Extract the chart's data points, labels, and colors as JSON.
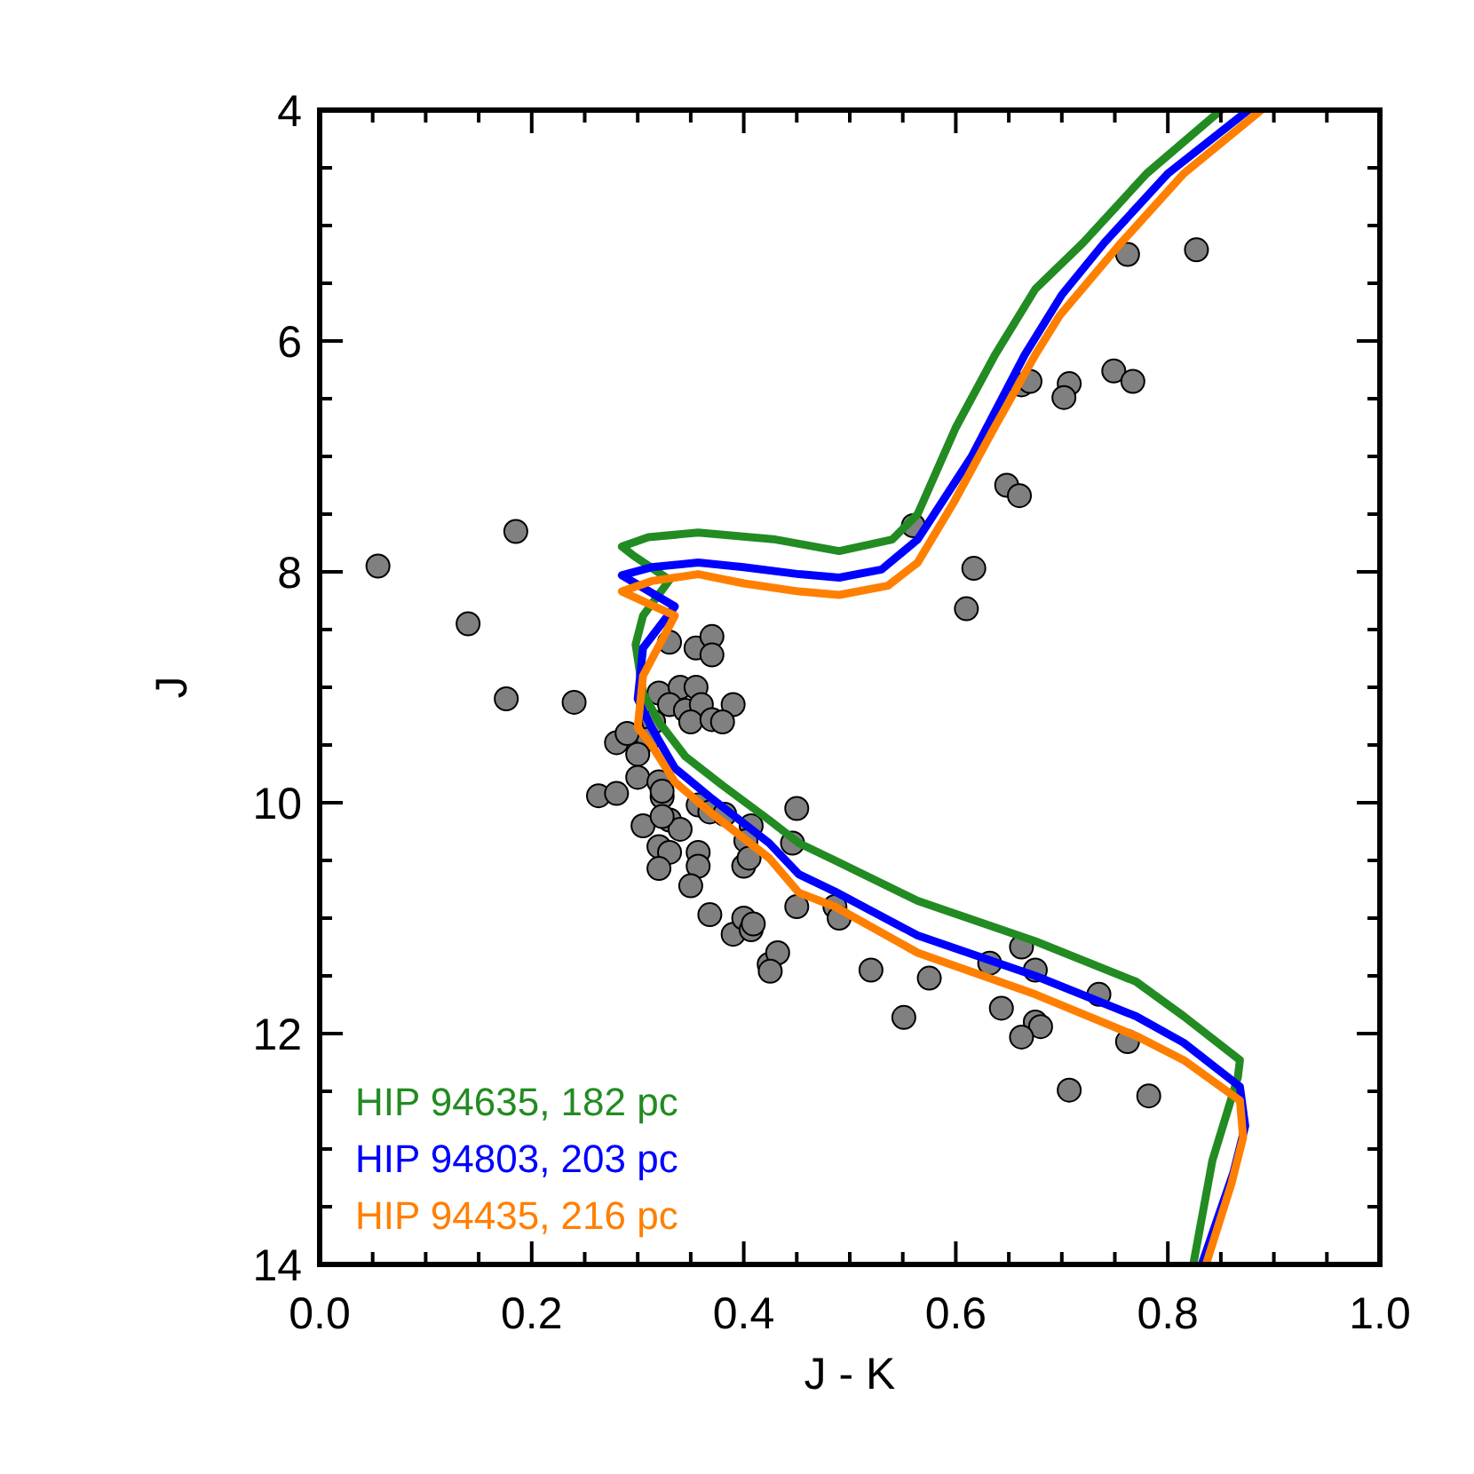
{
  "chart_data": {
    "type": "scatter",
    "xlabel": "J - K",
    "ylabel": "J",
    "xlim": [
      0,
      1
    ],
    "ylim": [
      14,
      4
    ],
    "xticks": [
      {
        "value": 0,
        "label": "0.0"
      },
      {
        "value": 0.05,
        "label": null
      },
      {
        "value": 0.1,
        "label": null
      },
      {
        "value": 0.15,
        "label": null
      },
      {
        "value": 0.2,
        "label": "0.2"
      },
      {
        "value": 0.25,
        "label": null
      },
      {
        "value": 0.3,
        "label": null
      },
      {
        "value": 0.35,
        "label": null
      },
      {
        "value": 0.4,
        "label": "0.4"
      },
      {
        "value": 0.45,
        "label": null
      },
      {
        "value": 0.5,
        "label": null
      },
      {
        "value": 0.55,
        "label": null
      },
      {
        "value": 0.6,
        "label": "0.6"
      },
      {
        "value": 0.65,
        "label": null
      },
      {
        "value": 0.7,
        "label": null
      },
      {
        "value": 0.75,
        "label": null
      },
      {
        "value": 0.8,
        "label": "0.8"
      },
      {
        "value": 0.85,
        "label": null
      },
      {
        "value": 0.9,
        "label": null
      },
      {
        "value": 0.95,
        "label": null
      },
      {
        "value": 1,
        "label": "1.0"
      }
    ],
    "yticks": [
      4,
      {
        "value": 4.5,
        "label": null
      },
      {
        "value": 5,
        "label": null
      },
      {
        "value": 5.5,
        "label": null
      },
      6,
      {
        "value": 6.5,
        "label": null
      },
      {
        "value": 7,
        "label": null
      },
      {
        "value": 7.5,
        "label": null
      },
      8,
      {
        "value": 8.5,
        "label": null
      },
      {
        "value": 9,
        "label": null
      },
      {
        "value": 9.5,
        "label": null
      },
      10,
      {
        "value": 10.5,
        "label": null
      },
      {
        "value": 11,
        "label": null
      },
      {
        "value": 11.5,
        "label": null
      },
      12,
      {
        "value": 12.5,
        "label": null
      },
      {
        "value": 13,
        "label": null
      },
      {
        "value": 13.5,
        "label": null
      },
      14
    ],
    "grid": false,
    "legend": "bottom left",
    "series": [
      {
        "marker": "circle",
        "color": "#808080",
        "x": [
          0.055,
          0.185,
          0.14,
          0.176,
          0.24,
          0.33,
          0.355,
          0.37,
          0.37,
          0.32,
          0.34,
          0.355,
          0.33,
          0.345,
          0.36,
          0.35,
          0.37,
          0.315,
          0.31,
          0.39,
          0.38,
          0.28,
          0.29,
          0.3,
          0.3,
          0.263,
          0.28,
          0.32,
          0.323,
          0.305,
          0.33,
          0.45,
          0.323,
          0.357,
          0.368,
          0.382,
          0.407,
          0.32,
          0.33,
          0.34,
          0.323,
          0.357,
          0.357,
          0.32,
          0.35,
          0.4,
          0.402,
          0.446,
          0.45,
          0.368,
          0.39,
          0.4,
          0.407,
          0.424,
          0.432,
          0.425,
          0.409,
          0.405,
          0.486,
          0.49,
          0.52,
          0.575,
          0.551,
          0.632,
          0.662,
          0.675,
          0.643,
          0.675,
          0.68,
          0.662,
          0.735,
          0.762,
          0.707,
          0.782,
          0.56,
          0.648,
          0.66,
          0.617,
          0.61,
          0.662,
          0.67,
          0.707,
          0.702,
          0.749,
          0.767,
          0.762,
          0.827
        ],
        "values": [
          7.95,
          7.65,
          8.45,
          9.1,
          9.13,
          8.61,
          8.66,
          8.56,
          8.72,
          9.05,
          9.0,
          9.0,
          9.15,
          9.2,
          9.15,
          9.3,
          9.28,
          9.3,
          9.45,
          9.15,
          9.3,
          9.48,
          9.4,
          9.58,
          9.78,
          9.94,
          9.92,
          9.82,
          9.95,
          10.2,
          10.15,
          10.05,
          9.9,
          10.02,
          10.08,
          10.1,
          10.2,
          10.38,
          10.43,
          10.23,
          10.12,
          10.43,
          10.55,
          10.57,
          10.72,
          10.55,
          10.33,
          10.35,
          10.9,
          10.97,
          11.14,
          11.0,
          11.1,
          11.4,
          11.3,
          11.46,
          11.05,
          10.48,
          10.9,
          11.0,
          11.45,
          11.52,
          11.86,
          11.39,
          11.25,
          11.45,
          11.78,
          11.9,
          11.94,
          12.03,
          11.66,
          12.07,
          12.49,
          12.54,
          7.6,
          7.25,
          7.34,
          7.97,
          8.32,
          6.38,
          6.35,
          6.37,
          6.49,
          6.26,
          6.35,
          5.25,
          5.21
        ]
      },
      {
        "type": "line",
        "name": "HIP 94635, 182 pc",
        "color": "#228b22",
        "x": [
          0.85,
          0.78,
          0.72,
          0.675,
          0.637,
          0.6,
          0.564,
          0.54,
          0.49,
          0.43,
          0.357,
          0.31,
          0.285,
          0.296,
          0.33,
          0.305,
          0.298,
          0.305,
          0.32,
          0.345,
          0.38,
          0.424,
          0.452,
          0.486,
          0.564,
          0.675,
          0.77,
          0.815,
          0.868,
          0.866,
          0.842,
          0.824
        ],
        "values": [
          4.0,
          4.55,
          5.15,
          5.55,
          6.12,
          6.75,
          7.5,
          7.72,
          7.82,
          7.72,
          7.66,
          7.7,
          7.78,
          7.86,
          8.07,
          8.38,
          8.63,
          9.05,
          9.3,
          9.6,
          9.85,
          10.15,
          10.35,
          10.5,
          10.85,
          11.2,
          11.55,
          11.85,
          12.23,
          12.38,
          13.1,
          14.0
        ]
      },
      {
        "type": "line",
        "name": "HIP 94803, 203 pc",
        "color": "#0000ff",
        "x": [
          0.876,
          0.8,
          0.74,
          0.7,
          0.665,
          0.615,
          0.564,
          0.53,
          0.49,
          0.452,
          0.4,
          0.357,
          0.313,
          0.285,
          0.335,
          0.305,
          0.3,
          0.313,
          0.335,
          0.368,
          0.424,
          0.452,
          0.486,
          0.564,
          0.675,
          0.77,
          0.815,
          0.868,
          0.873,
          0.862,
          0.832
        ],
        "values": [
          4.0,
          4.55,
          5.15,
          5.6,
          6.12,
          7.0,
          7.72,
          7.98,
          8.05,
          8.02,
          7.96,
          7.92,
          7.96,
          8.03,
          8.3,
          8.66,
          9.1,
          9.35,
          9.7,
          9.95,
          10.35,
          10.62,
          10.77,
          11.15,
          11.5,
          11.85,
          12.08,
          12.46,
          12.8,
          13.2,
          14.0
        ]
      },
      {
        "type": "line",
        "name": "HIP 94435, 216 pc",
        "color": "#ff7f00",
        "x": [
          0.888,
          0.815,
          0.754,
          0.698,
          0.675,
          0.637,
          0.598,
          0.564,
          0.536,
          0.49,
          0.452,
          0.4,
          0.357,
          0.313,
          0.285,
          0.335,
          0.305,
          0.3,
          0.313,
          0.335,
          0.368,
          0.424,
          0.452,
          0.486,
          0.564,
          0.675,
          0.77,
          0.815,
          0.868,
          0.871,
          0.86,
          0.836
        ],
        "values": [
          4.0,
          4.55,
          5.17,
          5.78,
          6.12,
          6.74,
          7.4,
          7.92,
          8.12,
          8.2,
          8.17,
          8.1,
          8.02,
          8.08,
          8.17,
          8.38,
          8.9,
          9.35,
          9.5,
          9.82,
          10.08,
          10.48,
          10.78,
          10.9,
          11.3,
          11.66,
          12.02,
          12.23,
          12.58,
          12.9,
          13.3,
          14.0
        ]
      }
    ]
  }
}
